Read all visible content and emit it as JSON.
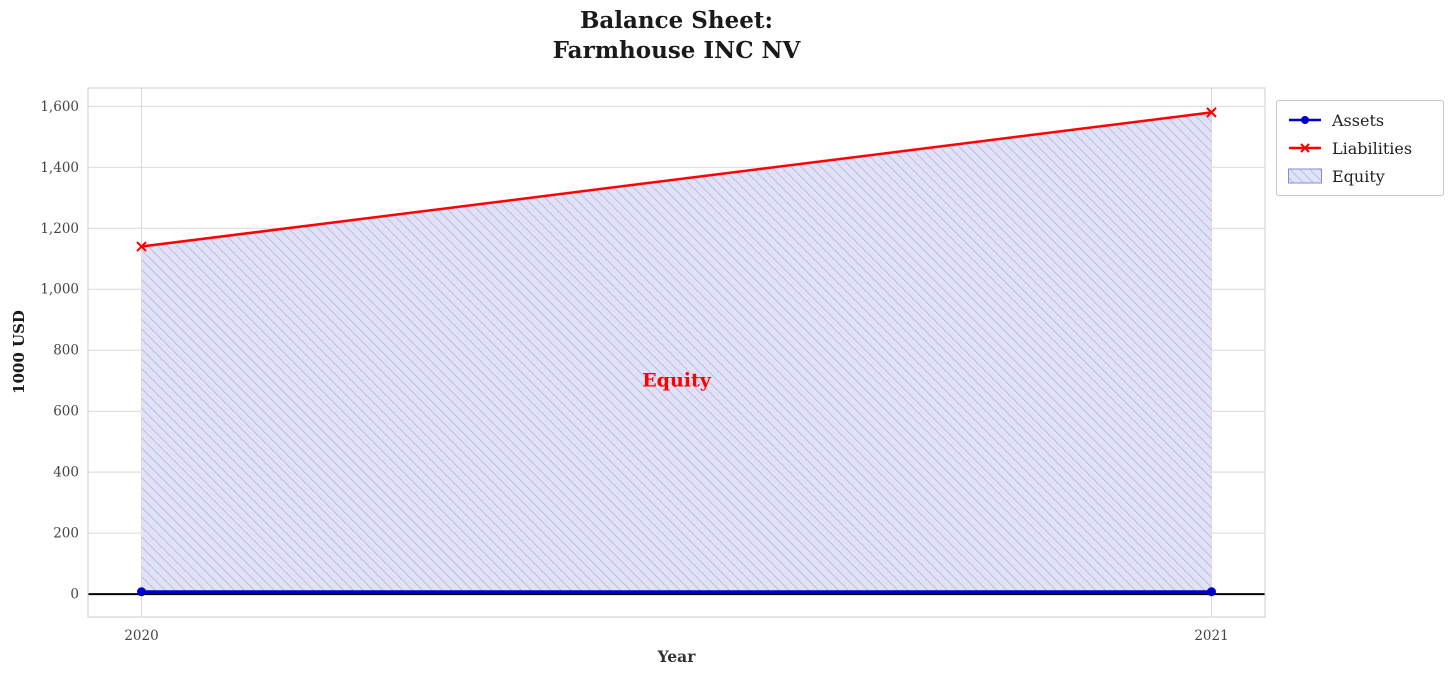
{
  "figure": {
    "title_line1": "Balance Sheet:",
    "title_line2": "Farmhouse INC NV",
    "xlabel": "Year",
    "ylabel": "1000 USD"
  },
  "legend": {
    "position": "upper-right-outside",
    "items": [
      {
        "label": "Assets",
        "glyph": "line-with-dot",
        "color": "#0000cc"
      },
      {
        "label": "Liabilities",
        "glyph": "line-with-x",
        "color": "#ff0000"
      },
      {
        "label": "Equity",
        "glyph": "hatched-patch",
        "fill": "#e2e2f7",
        "hatch_color": "#b2b2e8"
      }
    ]
  },
  "chart_data": {
    "type": "area",
    "title": "Balance Sheet:\nFarmhouse INC NV",
    "xlabel": "Year",
    "ylabel": "1000 USD",
    "x": [
      2020,
      2021
    ],
    "series": [
      {
        "name": "Assets",
        "values": [
          8,
          8
        ],
        "color": "#0000cc",
        "marker": "circle",
        "line_width": 3
      },
      {
        "name": "Liabilities",
        "values": [
          1140,
          1580
        ],
        "color": "#ff0000",
        "marker": "x",
        "line_width": 2.5
      }
    ],
    "fill_between": {
      "label": "Equity",
      "upper": "Liabilities",
      "lower": "Assets",
      "fill": "#e2e2f7",
      "hatch": "/",
      "hatch_color": "#b2b2e8"
    },
    "annotation": {
      "text": "Equity",
      "x": 2020.5,
      "y": 700,
      "color": "#ff0000",
      "bold": true
    },
    "xticks": [
      2020,
      2021
    ],
    "xtick_labels": [
      "2020",
      "2021"
    ],
    "yticks": [
      0,
      200,
      400,
      600,
      800,
      1000,
      1200,
      1400,
      1600
    ],
    "ytick_labels": [
      "0",
      "200",
      "400",
      "600",
      "800",
      "1,000",
      "1,200",
      "1,400",
      "1,600"
    ],
    "xlim": [
      2019.95,
      2021.05
    ],
    "ylim": [
      -75,
      1660
    ],
    "grid": true,
    "legend_position": "upper right outside",
    "zero_line": {
      "y": 0,
      "color": "#000000",
      "width": 2
    }
  }
}
